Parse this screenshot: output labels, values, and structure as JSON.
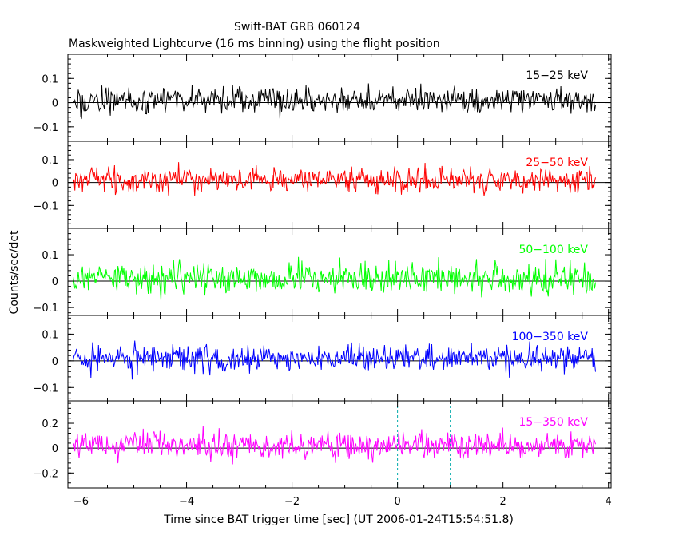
{
  "chart_data": {
    "type": "line",
    "title": "Swift-BAT GRB 060124",
    "subtitle": "Maskweighted Lightcurve (16 ms binning) using the flight position",
    "xlabel": "Time since BAT trigger time [sec] (UT 2006-01-24T15:54:51.8)",
    "ylabel": "Counts/sec/det",
    "xlim": [
      -6.25,
      4.05
    ],
    "x_range_data": [
      -6.15,
      3.75
    ],
    "x_ticks": [
      -6,
      -4,
      -2,
      0,
      2,
      4
    ],
    "x_tick_labels": [
      "−6",
      "−4",
      "−2",
      "0",
      "2",
      "4"
    ],
    "bin_size_sec": 0.016,
    "trigger_markers": [
      0,
      1
    ],
    "grid": false,
    "panels": [
      {
        "band": "15−25 keV",
        "color": "#000000",
        "ylim": [
          -0.16,
          0.2
        ],
        "y_ticks": [
          -0.1,
          0,
          0.1
        ],
        "y_tick_labels": [
          "−0.1",
          "0",
          "0.1"
        ],
        "mean": 0.01,
        "noise_amp": 0.05
      },
      {
        "band": "25−50 keV",
        "color": "#ff0000",
        "ylim": [
          -0.2,
          0.18
        ],
        "y_ticks": [
          -0.1,
          0,
          0.1
        ],
        "y_tick_labels": [
          "−0.1",
          "0",
          "0.1"
        ],
        "mean": 0.01,
        "noise_amp": 0.05
      },
      {
        "band": "50−100 keV",
        "color": "#00ff00",
        "ylim": [
          -0.13,
          0.2
        ],
        "y_ticks": [
          -0.1,
          0,
          0.1
        ],
        "y_tick_labels": [
          "−0.1",
          "0",
          "0.1"
        ],
        "mean": 0.01,
        "noise_amp": 0.055
      },
      {
        "band": "100−350 keV",
        "color": "#0000ff",
        "ylim": [
          -0.15,
          0.17
        ],
        "y_ticks": [
          -0.1,
          0,
          0.1
        ],
        "y_tick_labels": [
          "−0.1",
          "0",
          "0.1"
        ],
        "mean": 0.01,
        "noise_amp": 0.045
      },
      {
        "band": "15−350 keV",
        "color": "#ff00ff",
        "ylim": [
          -0.32,
          0.38
        ],
        "y_ticks": [
          -0.2,
          0,
          0.2
        ],
        "y_tick_labels": [
          "−0.2",
          "0",
          "0.2"
        ],
        "mean": 0.02,
        "noise_amp": 0.1
      }
    ]
  }
}
